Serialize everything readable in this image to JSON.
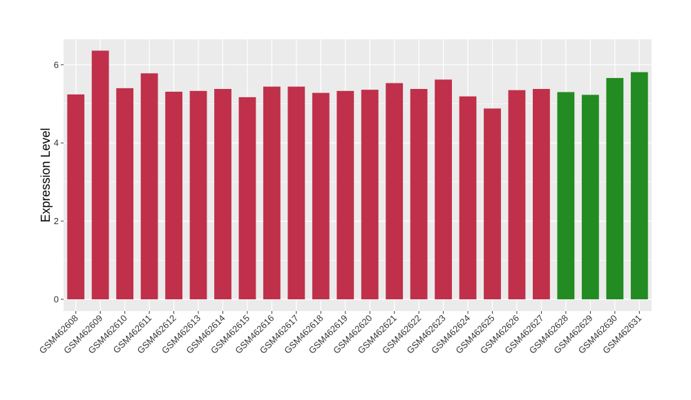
{
  "chart_data": {
    "type": "bar",
    "title": "",
    "xlabel": "",
    "ylabel": "Expression Level",
    "ylim": [
      -0.3,
      6.65
    ],
    "yticks": [
      0,
      2,
      4,
      6
    ],
    "grid": true,
    "categories": [
      "GSM462608",
      "GSM462609",
      "GSM462610",
      "GSM462611",
      "GSM462612",
      "GSM462613",
      "GSM462614",
      "GSM462615",
      "GSM462616",
      "GSM462617",
      "GSM462618",
      "GSM462619",
      "GSM462620",
      "GSM462621",
      "GSM462622",
      "GSM462623",
      "GSM462624",
      "GSM462625",
      "GSM462626",
      "GSM462627",
      "GSM462628",
      "GSM462629",
      "GSM462630",
      "GSM462631"
    ],
    "values": [
      5.24,
      6.36,
      5.4,
      5.78,
      5.31,
      5.33,
      5.38,
      5.17,
      5.44,
      5.44,
      5.28,
      5.33,
      5.36,
      5.53,
      5.38,
      5.62,
      5.19,
      4.88,
      5.35,
      5.38,
      5.3,
      5.23,
      5.66,
      5.81
    ],
    "groups": [
      "a",
      "a",
      "a",
      "a",
      "a",
      "a",
      "a",
      "a",
      "a",
      "a",
      "a",
      "a",
      "a",
      "a",
      "a",
      "a",
      "a",
      "a",
      "a",
      "a",
      "b",
      "b",
      "b",
      "b"
    ],
    "colors": {
      "a": "#C0304A",
      "b": "#228B22",
      "panel": "#EBEBEB",
      "grid": "#FFFFFF"
    }
  }
}
